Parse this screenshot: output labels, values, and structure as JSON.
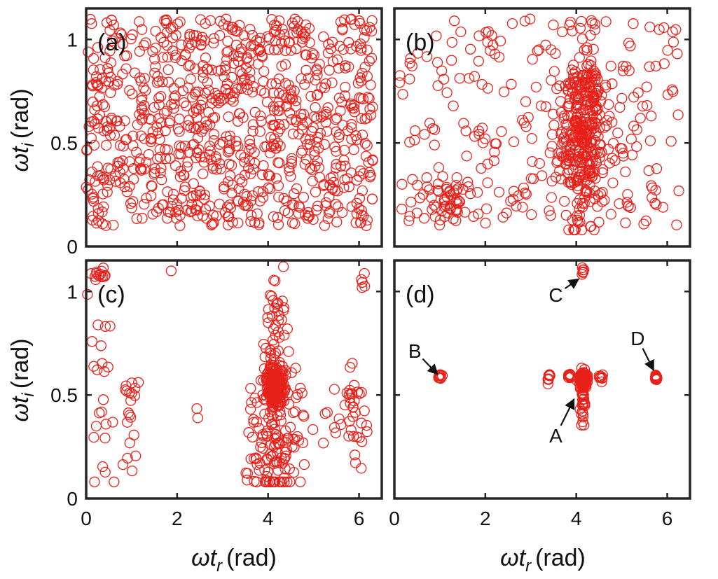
{
  "figure": {
    "panels": [
      {
        "id": "a",
        "label": "(a)"
      },
      {
        "id": "b",
        "label": "(b)"
      },
      {
        "id": "c",
        "label": "(c)"
      },
      {
        "id": "d",
        "label": "(d)"
      }
    ],
    "ylabel_main": "ωt",
    "ylabel_sub": "i",
    "ylabel_unit": "(rad)",
    "xlabel_main": "ωt",
    "xlabel_sub": "r",
    "xlabel_unit": "(rad)",
    "marker_color": "#e8211b"
  },
  "chart_data": [
    {
      "type": "scatter",
      "panel": "(a)",
      "xlim": [
        0,
        6.5
      ],
      "ylim": [
        0,
        1.15
      ],
      "xticks": [
        0,
        2,
        4,
        6
      ],
      "yticks": [
        0,
        0.5,
        1
      ],
      "xtick_labels": [
        "",
        "",
        "",
        ""
      ],
      "ytick_labels": [
        "0",
        "0.5",
        "1"
      ],
      "marker": "open-circle",
      "distribution": "uniform",
      "n_points": 900,
      "x_range": [
        0.0,
        6.3
      ],
      "y_range": [
        0.1,
        1.1
      ],
      "seed": 11
    },
    {
      "type": "scatter",
      "panel": "(b)",
      "xlim": [
        0,
        6.5
      ],
      "ylim": [
        0,
        1.15
      ],
      "xticks": [
        0,
        2,
        4,
        6
      ],
      "yticks": [
        0,
        0.5,
        1
      ],
      "xtick_labels": [
        "",
        "",
        "",
        ""
      ],
      "ytick_labels": [
        "",
        "",
        ""
      ],
      "marker": "open-circle",
      "distribution": "clustered",
      "n_points": 620,
      "x_range": [
        0.0,
        6.3
      ],
      "y_range": [
        0.1,
        1.1
      ],
      "seed": 23,
      "clusters": [
        {
          "x": 4.1,
          "y": 0.5,
          "sx": 0.25,
          "sy": 0.18,
          "n": 260
        },
        {
          "x": 4.2,
          "y": 0.78,
          "sx": 0.15,
          "sy": 0.05,
          "n": 50
        },
        {
          "x": 1.2,
          "y": 0.2,
          "sx": 0.35,
          "sy": 0.05,
          "n": 40
        }
      ]
    },
    {
      "type": "scatter",
      "panel": "(c)",
      "xlim": [
        0,
        6.5
      ],
      "ylim": [
        0,
        1.15
      ],
      "xticks": [
        0,
        2,
        4,
        6
      ],
      "yticks": [
        0,
        0.5,
        1
      ],
      "xtick_labels": [
        "0",
        "2",
        "4",
        "6"
      ],
      "ytick_labels": [
        "0",
        "0.5",
        "1"
      ],
      "marker": "open-circle",
      "distribution": "clustered",
      "n_points": 560,
      "seed": 37,
      "clusters": [
        {
          "x": 4.15,
          "y": 0.55,
          "sx": 0.08,
          "sy": 0.05,
          "n": 200
        },
        {
          "x": 4.15,
          "y": 0.35,
          "sx": 0.28,
          "sy": 0.2,
          "n": 170
        },
        {
          "x": 4.2,
          "y": 0.9,
          "sx": 0.12,
          "sy": 0.1,
          "n": 30
        },
        {
          "x": 5.9,
          "y": 0.45,
          "sx": 0.15,
          "sy": 0.18,
          "n": 30
        },
        {
          "x": 1.0,
          "y": 0.45,
          "sx": 0.1,
          "sy": 0.15,
          "n": 20
        },
        {
          "x": 0.35,
          "y": 0.55,
          "sx": 0.15,
          "sy": 0.3,
          "n": 25
        },
        {
          "x": 0.3,
          "y": 1.08,
          "sx": 0.08,
          "sy": 0.01,
          "n": 12
        },
        {
          "x": 6.0,
          "y": 1.05,
          "sx": 0.15,
          "sy": 0.03,
          "n": 5
        },
        {
          "x": 2.5,
          "y": 0.42,
          "sx": 0.05,
          "sy": 0.02,
          "n": 2
        },
        {
          "x": 1.9,
          "y": 1.09,
          "sx": 0.05,
          "sy": 0.01,
          "n": 1
        },
        {
          "x": 5.5,
          "y": 0.38,
          "sx": 0.2,
          "sy": 0.1,
          "n": 12
        }
      ]
    },
    {
      "type": "scatter",
      "panel": "(d)",
      "xlim": [
        0,
        6.5
      ],
      "ylim": [
        0,
        1.15
      ],
      "xticks": [
        0,
        2,
        4,
        6
      ],
      "yticks": [
        0,
        0.5,
        1
      ],
      "xtick_labels": [
        "0",
        "2",
        "4",
        "6"
      ],
      "ytick_labels": [
        "",
        "",
        ""
      ],
      "marker": "open-circle",
      "distribution": "clustered",
      "n_points": 200,
      "seed": 53,
      "clusters": [
        {
          "x": 4.15,
          "y": 0.58,
          "sx": 0.05,
          "sy": 0.02,
          "n": 90
        },
        {
          "x": 4.15,
          "y": 0.48,
          "sx": 0.03,
          "sy": 0.06,
          "n": 25
        },
        {
          "x": 3.4,
          "y": 0.58,
          "sx": 0.02,
          "sy": 0.015,
          "n": 8
        },
        {
          "x": 3.85,
          "y": 0.58,
          "sx": 0.02,
          "sy": 0.015,
          "n": 8
        },
        {
          "x": 4.55,
          "y": 0.58,
          "sx": 0.02,
          "sy": 0.015,
          "n": 8
        },
        {
          "x": 1.0,
          "y": 0.585,
          "sx": 0.02,
          "sy": 0.01,
          "n": 12
        },
        {
          "x": 5.75,
          "y": 0.585,
          "sx": 0.02,
          "sy": 0.01,
          "n": 12
        },
        {
          "x": 4.15,
          "y": 1.09,
          "sx": 0.02,
          "sy": 0.01,
          "n": 6
        },
        {
          "x": 4.15,
          "y": 0.36,
          "sx": 0.02,
          "sy": 0.015,
          "n": 4
        }
      ],
      "annotations": [
        {
          "text": "A",
          "x": 3.55,
          "y": 0.27,
          "arrow_to": [
            3.95,
            0.48
          ]
        },
        {
          "text": "B",
          "x": 0.45,
          "y": 0.68,
          "arrow_to": [
            0.95,
            0.6
          ]
        },
        {
          "text": "C",
          "x": 3.55,
          "y": 0.95,
          "arrow_to": [
            4.05,
            1.06
          ]
        },
        {
          "text": "D",
          "x": 5.35,
          "y": 0.74,
          "arrow_to": [
            5.7,
            0.62
          ]
        }
      ]
    }
  ]
}
